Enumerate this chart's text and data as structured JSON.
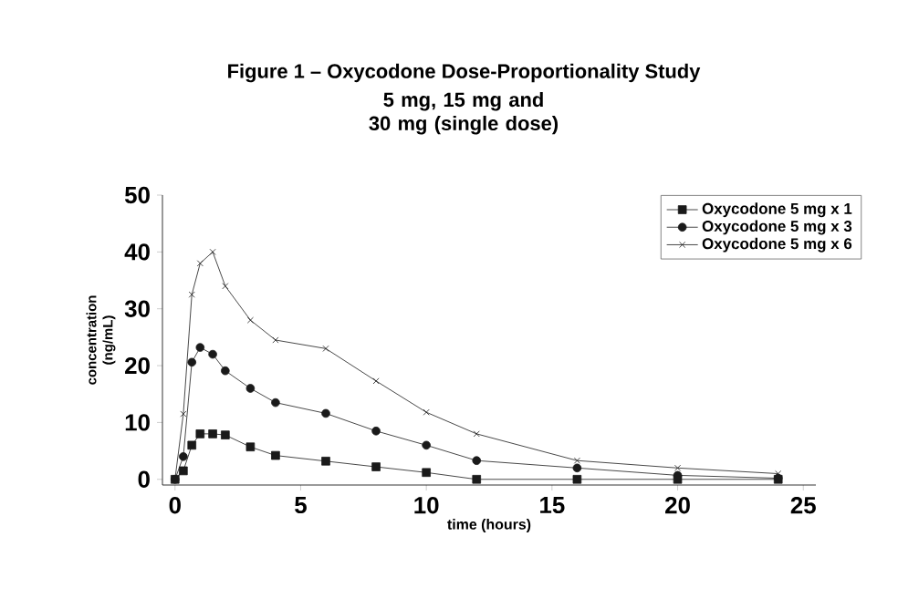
{
  "chart_data": {
    "type": "line",
    "title": "Figure 1 – Oxycodone Dose-Proportionality Study",
    "subtitle": "5 mg, 15 mg and 30 mg (single dose)",
    "xlabel": "time (hours)",
    "ylabel": "concentration (ng/mL)",
    "xlim": [
      -0.5,
      25.5
    ],
    "ylim": [
      -1,
      50
    ],
    "xticks": [
      0,
      5,
      10,
      15,
      20,
      25
    ],
    "yticks": [
      0,
      10,
      20,
      30,
      40,
      50
    ],
    "grid": false,
    "legend": "top right",
    "line_style": "solid",
    "series": [
      {
        "name": "Oxycodone 5 mg x 1",
        "color": "#1a1a1a",
        "marker": "square",
        "x": [
          0,
          0.33,
          0.67,
          1,
          1.5,
          2,
          3,
          4,
          6,
          8,
          10,
          12,
          16,
          20,
          24
        ],
        "values": [
          0,
          1.5,
          6,
          8,
          8,
          7.8,
          5.7,
          4.2,
          3.2,
          2.2,
          1.2,
          0,
          0,
          0,
          0
        ]
      },
      {
        "name": "Oxycodone 5 mg x 3",
        "color": "#1a1a1a",
        "marker": "circle",
        "x": [
          0,
          0.33,
          0.67,
          1,
          1.5,
          2,
          3,
          4,
          6,
          8,
          10,
          12,
          16,
          20,
          24
        ],
        "values": [
          0,
          4,
          20.6,
          23.2,
          22,
          19.1,
          16,
          13.5,
          11.6,
          8.5,
          6,
          3.3,
          2,
          0.7,
          0.2
        ]
      },
      {
        "name": "Oxycodone 5 mg x 6",
        "color": "#1a1a1a",
        "marker": "cross",
        "x": [
          0,
          0.33,
          0.67,
          1,
          1.5,
          2,
          3,
          4,
          6,
          8,
          10,
          12,
          16,
          20,
          24
        ],
        "values": [
          0,
          11.5,
          32.5,
          38,
          40,
          34,
          28,
          24.5,
          23,
          17.3,
          11.8,
          8,
          3.3,
          2,
          1
        ]
      }
    ]
  }
}
